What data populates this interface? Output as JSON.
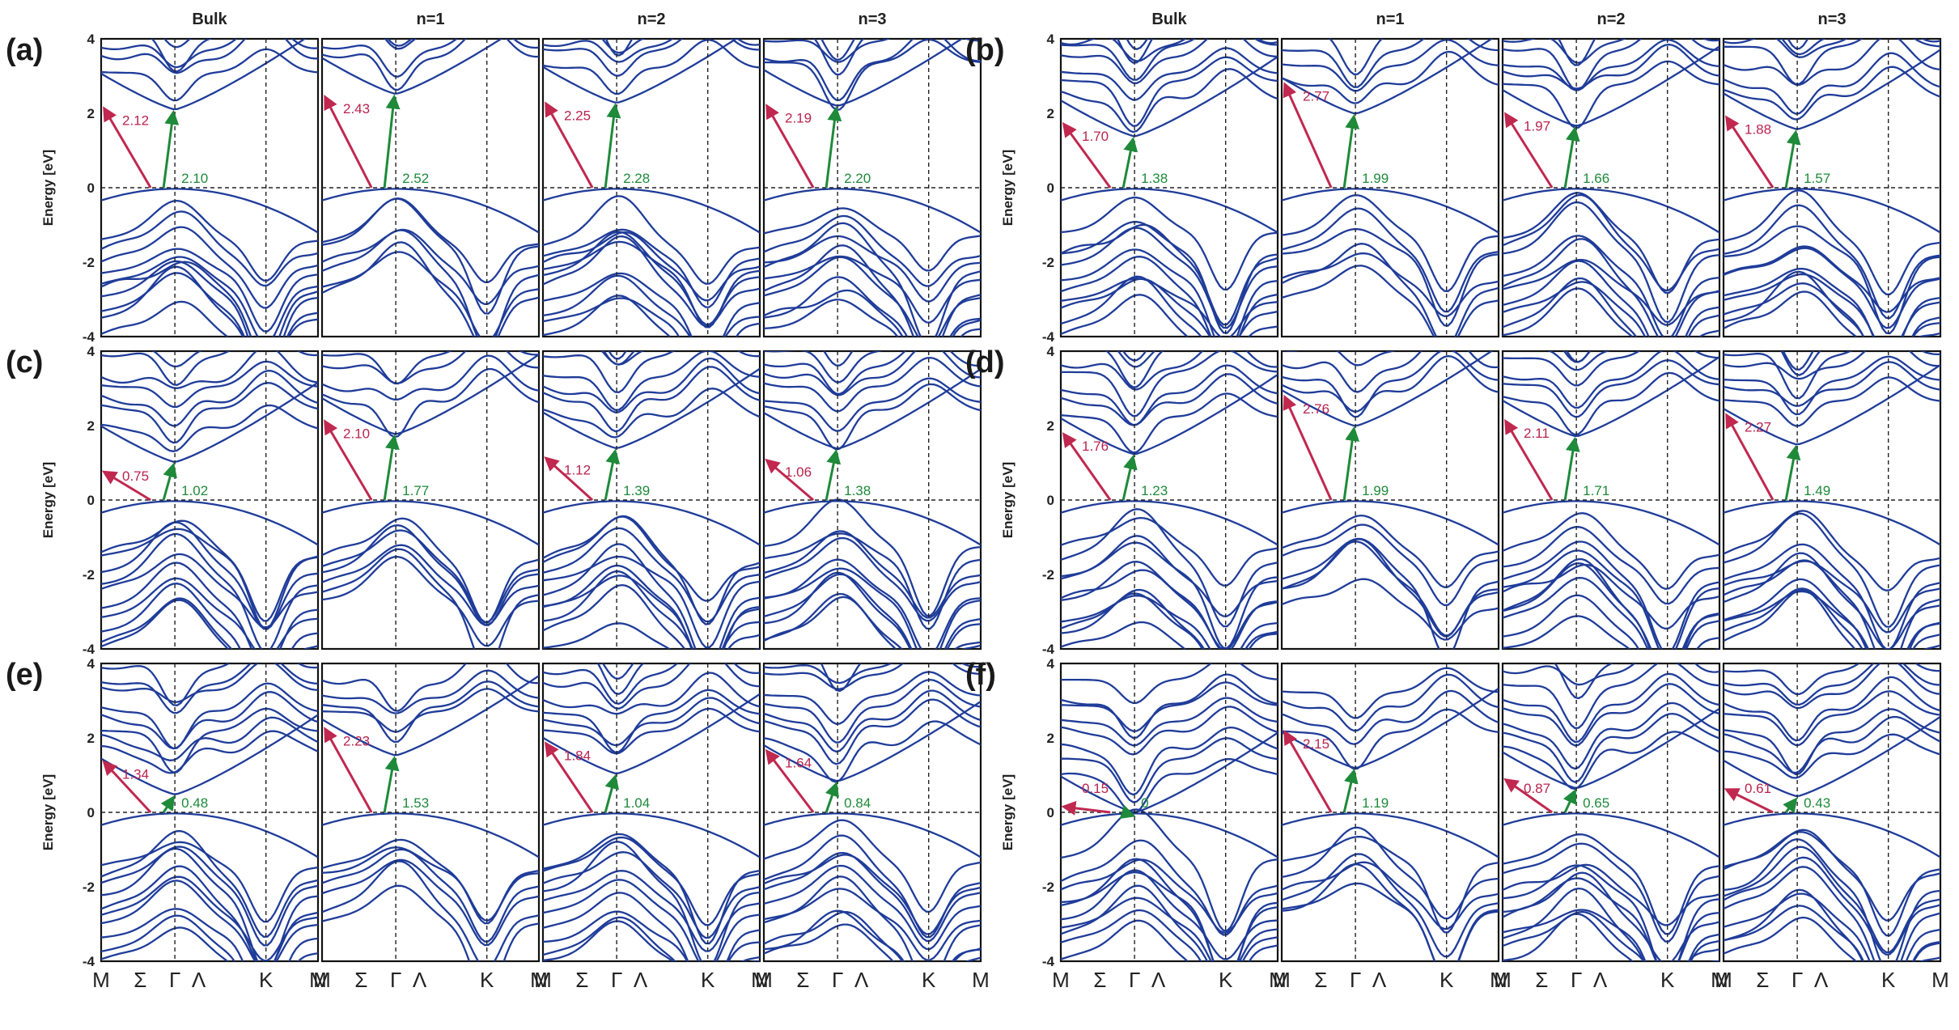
{
  "figure": {
    "ylabel": "Energy [eV]",
    "column_titles": [
      "Bulk",
      "n=1",
      "n=2",
      "n=3"
    ],
    "x_ticks": [
      "M",
      "Σ",
      "Γ",
      "Λ",
      "K",
      "M"
    ],
    "y_ticks": [
      "4",
      "2",
      "0",
      "-2",
      "-4"
    ],
    "colors": {
      "band": "#1f3c99",
      "indirect_arrow": "#c0284f",
      "direct_arrow": "#1e8a3a"
    }
  },
  "chart_data": [
    {
      "panel": "(a)",
      "type": "line",
      "title": "",
      "xlabel": "",
      "ylabel": "Energy [eV]",
      "ylim": [
        -4,
        4
      ],
      "categories": [
        "Bulk",
        "n=1",
        "n=2",
        "n=3"
      ],
      "series": [
        {
          "name": "indirect gap (eV)",
          "values": [
            "2.12",
            "2.43",
            "2.25",
            "2.19"
          ]
        },
        {
          "name": "direct gap at Γ (eV)",
          "values": [
            "2.10",
            "2.52",
            "2.28",
            "2.20"
          ]
        }
      ]
    },
    {
      "panel": "(b)",
      "type": "line",
      "title": "",
      "xlabel": "",
      "ylabel": "Energy [eV]",
      "ylim": [
        -4,
        4
      ],
      "categories": [
        "Bulk",
        "n=1",
        "n=2",
        "n=3"
      ],
      "series": [
        {
          "name": "indirect gap (eV)",
          "values": [
            "1.70",
            "2.77",
            "1.97",
            "1.88"
          ]
        },
        {
          "name": "direct gap at Γ (eV)",
          "values": [
            "1.38",
            "1.99",
            "1.66",
            "1.57"
          ]
        }
      ]
    },
    {
      "panel": "(c)",
      "type": "line",
      "title": "",
      "xlabel": "",
      "ylabel": "Energy [eV]",
      "ylim": [
        -4,
        4
      ],
      "categories": [
        "Bulk",
        "n=1",
        "n=2",
        "n=3"
      ],
      "series": [
        {
          "name": "indirect gap (eV)",
          "values": [
            "0.75",
            "2.10",
            "1.12",
            "1.06"
          ]
        },
        {
          "name": "direct gap at Γ (eV)",
          "values": [
            "1.02",
            "1.77",
            "1.39",
            "1.38"
          ]
        }
      ]
    },
    {
      "panel": "(d)",
      "type": "line",
      "title": "",
      "xlabel": "",
      "ylabel": "Energy [eV]",
      "ylim": [
        -4,
        4
      ],
      "categories": [
        "Bulk",
        "n=1",
        "n=2",
        "n=3"
      ],
      "series": [
        {
          "name": "indirect gap (eV)",
          "values": [
            "1.76",
            "2.76",
            "2.11",
            "2.27"
          ]
        },
        {
          "name": "direct gap at Γ (eV)",
          "values": [
            "1.23",
            "1.99",
            "1.71",
            "1.49"
          ]
        }
      ]
    },
    {
      "panel": "(e)",
      "type": "line",
      "title": "",
      "xlabel": "",
      "ylabel": "Energy [eV]",
      "ylim": [
        -4,
        4
      ],
      "categories": [
        "Bulk",
        "n=1",
        "n=2",
        "n=3"
      ],
      "series": [
        {
          "name": "indirect gap (eV)",
          "values": [
            "1.34",
            "2.23",
            "1.84",
            "1.64"
          ]
        },
        {
          "name": "direct gap at Γ (eV)",
          "values": [
            "0.48",
            "1.53",
            "1.04",
            "0.84"
          ]
        }
      ]
    },
    {
      "panel": "(f)",
      "type": "line",
      "title": "",
      "xlabel": "",
      "ylabel": "Energy [eV]",
      "ylim": [
        -4,
        4
      ],
      "categories": [
        "Bulk",
        "n=1",
        "n=2",
        "n=3"
      ],
      "series": [
        {
          "name": "indirect gap (eV)",
          "values": [
            "0.15",
            "2.15",
            "0.87",
            "0.61"
          ]
        },
        {
          "name": "direct gap at Γ (eV)",
          "values": [
            "0",
            "1.19",
            "0.65",
            "0.43"
          ]
        }
      ]
    }
  ]
}
